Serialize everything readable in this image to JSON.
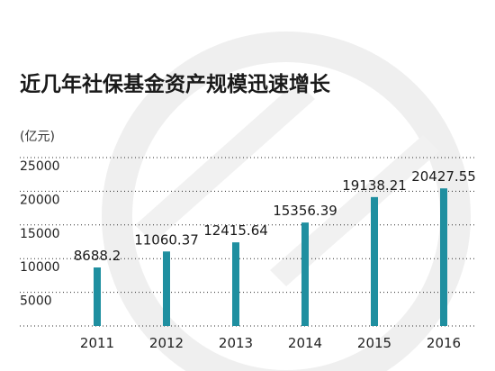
{
  "chart_data": {
    "type": "bar",
    "title": "近几年社保基金资产规模迅速增长",
    "unit_label": "(亿元)",
    "categories": [
      "2011",
      "2012",
      "2013",
      "2014",
      "2015",
      "2016"
    ],
    "values": [
      8688.2,
      11060.37,
      12415.64,
      15356.39,
      19138.21,
      20427.55
    ],
    "data_labels": [
      "8688.2",
      "11060.37",
      "12415.64",
      "15356.39",
      "19138.21",
      "20427.55"
    ],
    "yticks": [
      "5000",
      "10000",
      "15000",
      "20000",
      "25000"
    ],
    "ytick_values": [
      5000,
      10000,
      15000,
      20000,
      25000
    ],
    "ylim": [
      0,
      25000
    ],
    "xlabel": "",
    "ylabel": "",
    "grid": true,
    "bar_color": "#1f8fa0",
    "grid_color": "#2a2a2a",
    "watermark_color": "#efefef"
  }
}
